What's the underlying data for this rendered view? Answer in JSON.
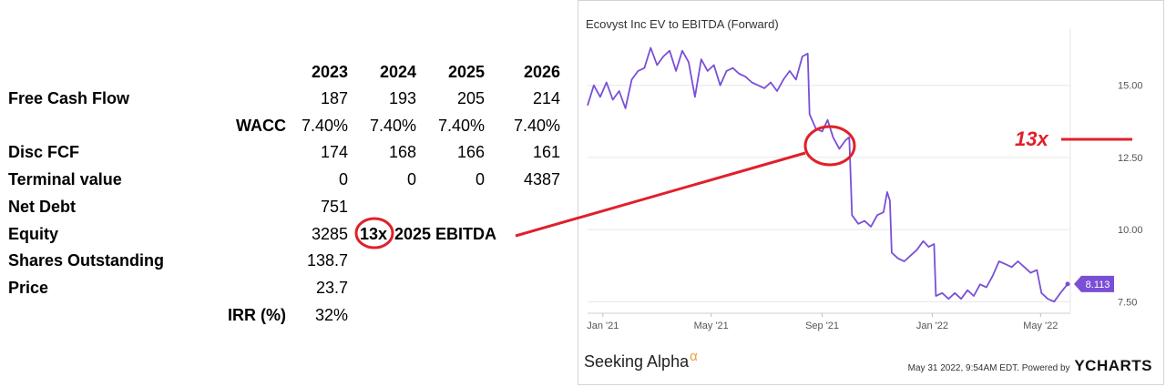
{
  "table": {
    "years": [
      "2023",
      "2024",
      "2025",
      "2026"
    ],
    "rows": [
      {
        "label": "Free Cash Flow",
        "values": [
          "187",
          "193",
          "205",
          "214"
        ]
      },
      {
        "label": "WACC",
        "values": [
          "7.40%",
          "7.40%",
          "7.40%",
          "7.40%"
        ]
      },
      {
        "label": "Disc FCF",
        "values": [
          "174",
          "168",
          "166",
          "161"
        ]
      },
      {
        "label": "Terminal value",
        "values": [
          "0",
          "0",
          "0",
          "4387"
        ]
      },
      {
        "label": "Net Debt",
        "values": [
          "751"
        ]
      },
      {
        "label": "Equity",
        "values": [
          "3285"
        ]
      },
      {
        "label": "Shares Outstanding",
        "values": [
          "138.7"
        ]
      },
      {
        "label": "Price",
        "values": [
          "23.7"
        ]
      },
      {
        "label": "IRR (%)",
        "values": [
          "32%"
        ]
      }
    ],
    "equity_note_multiple": "13x",
    "equity_note_text": "2025 EBITDA"
  },
  "chart_data": {
    "type": "line",
    "title": "Ecovyst Inc EV to EBITDA (Forward)",
    "xlabel": "",
    "ylabel": "",
    "x_ticks": [
      "Jan '21",
      "May '21",
      "Sep '21",
      "Jan '22",
      "May '22"
    ],
    "y_ticks": [
      7.5,
      10.0,
      12.5,
      15.0
    ],
    "y_tick_labels": [
      "7.50",
      "10.00",
      "12.50",
      "15.00"
    ],
    "ylim": [
      7.1,
      16.6
    ],
    "x_range": [
      "2020-12-15",
      "2022-06-03"
    ],
    "grid": true,
    "series": [
      {
        "color": "#7a4fd6",
        "points": [
          [
            "2020-12-15",
            14.3
          ],
          [
            "2020-12-22",
            15.0
          ],
          [
            "2020-12-29",
            14.6
          ],
          [
            "2021-01-05",
            15.1
          ],
          [
            "2021-01-12",
            14.5
          ],
          [
            "2021-01-19",
            14.8
          ],
          [
            "2021-01-26",
            14.2
          ],
          [
            "2021-02-02",
            15.2
          ],
          [
            "2021-02-09",
            15.5
          ],
          [
            "2021-02-16",
            15.6
          ],
          [
            "2021-02-23",
            16.3
          ],
          [
            "2021-03-02",
            15.7
          ],
          [
            "2021-03-09",
            16.0
          ],
          [
            "2021-03-16",
            16.2
          ],
          [
            "2021-03-23",
            15.5
          ],
          [
            "2021-03-30",
            16.2
          ],
          [
            "2021-04-06",
            15.8
          ],
          [
            "2021-04-13",
            14.6
          ],
          [
            "2021-04-20",
            15.9
          ],
          [
            "2021-04-27",
            15.5
          ],
          [
            "2021-05-04",
            15.7
          ],
          [
            "2021-05-11",
            15.0
          ],
          [
            "2021-05-18",
            15.5
          ],
          [
            "2021-05-25",
            15.6
          ],
          [
            "2021-06-01",
            15.4
          ],
          [
            "2021-06-08",
            15.3
          ],
          [
            "2021-06-15",
            15.1
          ],
          [
            "2021-06-22",
            15.0
          ],
          [
            "2021-06-29",
            14.9
          ],
          [
            "2021-07-06",
            15.1
          ],
          [
            "2021-07-13",
            14.8
          ],
          [
            "2021-07-20",
            15.2
          ],
          [
            "2021-07-27",
            15.5
          ],
          [
            "2021-08-03",
            15.2
          ],
          [
            "2021-08-10",
            16.0
          ],
          [
            "2021-08-16",
            16.1
          ],
          [
            "2021-08-18",
            14.0
          ],
          [
            "2021-08-25",
            13.5
          ],
          [
            "2021-09-01",
            13.4
          ],
          [
            "2021-09-07",
            13.8
          ],
          [
            "2021-09-13",
            13.2
          ],
          [
            "2021-09-20",
            12.8
          ],
          [
            "2021-09-27",
            13.1
          ],
          [
            "2021-10-01",
            13.2
          ],
          [
            "2021-10-04",
            10.5
          ],
          [
            "2021-10-11",
            10.2
          ],
          [
            "2021-10-18",
            10.3
          ],
          [
            "2021-10-25",
            10.1
          ],
          [
            "2021-11-01",
            10.5
          ],
          [
            "2021-11-08",
            10.6
          ],
          [
            "2021-11-12",
            11.3
          ],
          [
            "2021-11-15",
            11.0
          ],
          [
            "2021-11-17",
            9.2
          ],
          [
            "2021-11-24",
            9.0
          ],
          [
            "2021-12-01",
            8.9
          ],
          [
            "2021-12-08",
            9.1
          ],
          [
            "2021-12-15",
            9.3
          ],
          [
            "2021-12-22",
            9.6
          ],
          [
            "2021-12-28",
            9.4
          ],
          [
            "2022-01-03",
            9.5
          ],
          [
            "2022-01-05",
            7.7
          ],
          [
            "2022-01-12",
            7.8
          ],
          [
            "2022-01-19",
            7.6
          ],
          [
            "2022-01-26",
            7.8
          ],
          [
            "2022-02-02",
            7.6
          ],
          [
            "2022-02-09",
            7.9
          ],
          [
            "2022-02-16",
            7.7
          ],
          [
            "2022-02-23",
            8.1
          ],
          [
            "2022-03-02",
            8.0
          ],
          [
            "2022-03-09",
            8.4
          ],
          [
            "2022-03-16",
            8.9
          ],
          [
            "2022-03-23",
            8.8
          ],
          [
            "2022-03-30",
            8.7
          ],
          [
            "2022-04-06",
            8.9
          ],
          [
            "2022-04-13",
            8.7
          ],
          [
            "2022-04-20",
            8.5
          ],
          [
            "2022-04-27",
            8.6
          ],
          [
            "2022-05-02",
            7.8
          ],
          [
            "2022-05-09",
            7.6
          ],
          [
            "2022-05-16",
            7.5
          ],
          [
            "2022-05-23",
            7.8
          ],
          [
            "2022-05-31",
            8.113
          ]
        ]
      }
    ],
    "last_value_label": "8.113"
  },
  "footer": {
    "brand": "Seeking Alpha",
    "brand_mark": "α",
    "timestamp": "May 31 2022, 9:54AM EDT.",
    "powered_by": "Powered by",
    "ycharts": "YCHARTS"
  },
  "annotation": {
    "label": "13x",
    "color": "#e0202a"
  }
}
